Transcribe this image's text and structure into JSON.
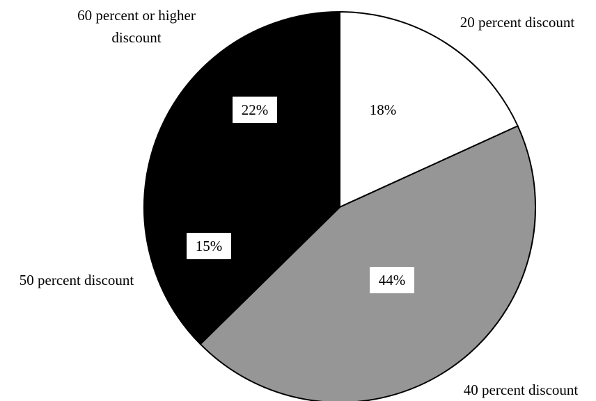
{
  "chart_data": {
    "type": "pie",
    "title": "",
    "slices": [
      {
        "label_lines": [
          "20 percent discount"
        ],
        "value": 18,
        "value_label": "18%",
        "color": "#ffffff",
        "label_box": false
      },
      {
        "label_lines": [
          "40 percent discount"
        ],
        "value": 44,
        "value_label": "44%",
        "color": "#969696",
        "label_box": true
      },
      {
        "label_lines": [
          "50 percent discount"
        ],
        "value": 15,
        "value_label": "15%",
        "color": "#000000",
        "label_box": true
      },
      {
        "label_lines": [
          "60 percent or higher",
          "discount"
        ],
        "value": 22,
        "value_label": "22%",
        "color": "#000000",
        "label_box": true
      }
    ],
    "start_angle": "12 o'clock",
    "direction": "clockwise",
    "border_color": "#000000"
  }
}
